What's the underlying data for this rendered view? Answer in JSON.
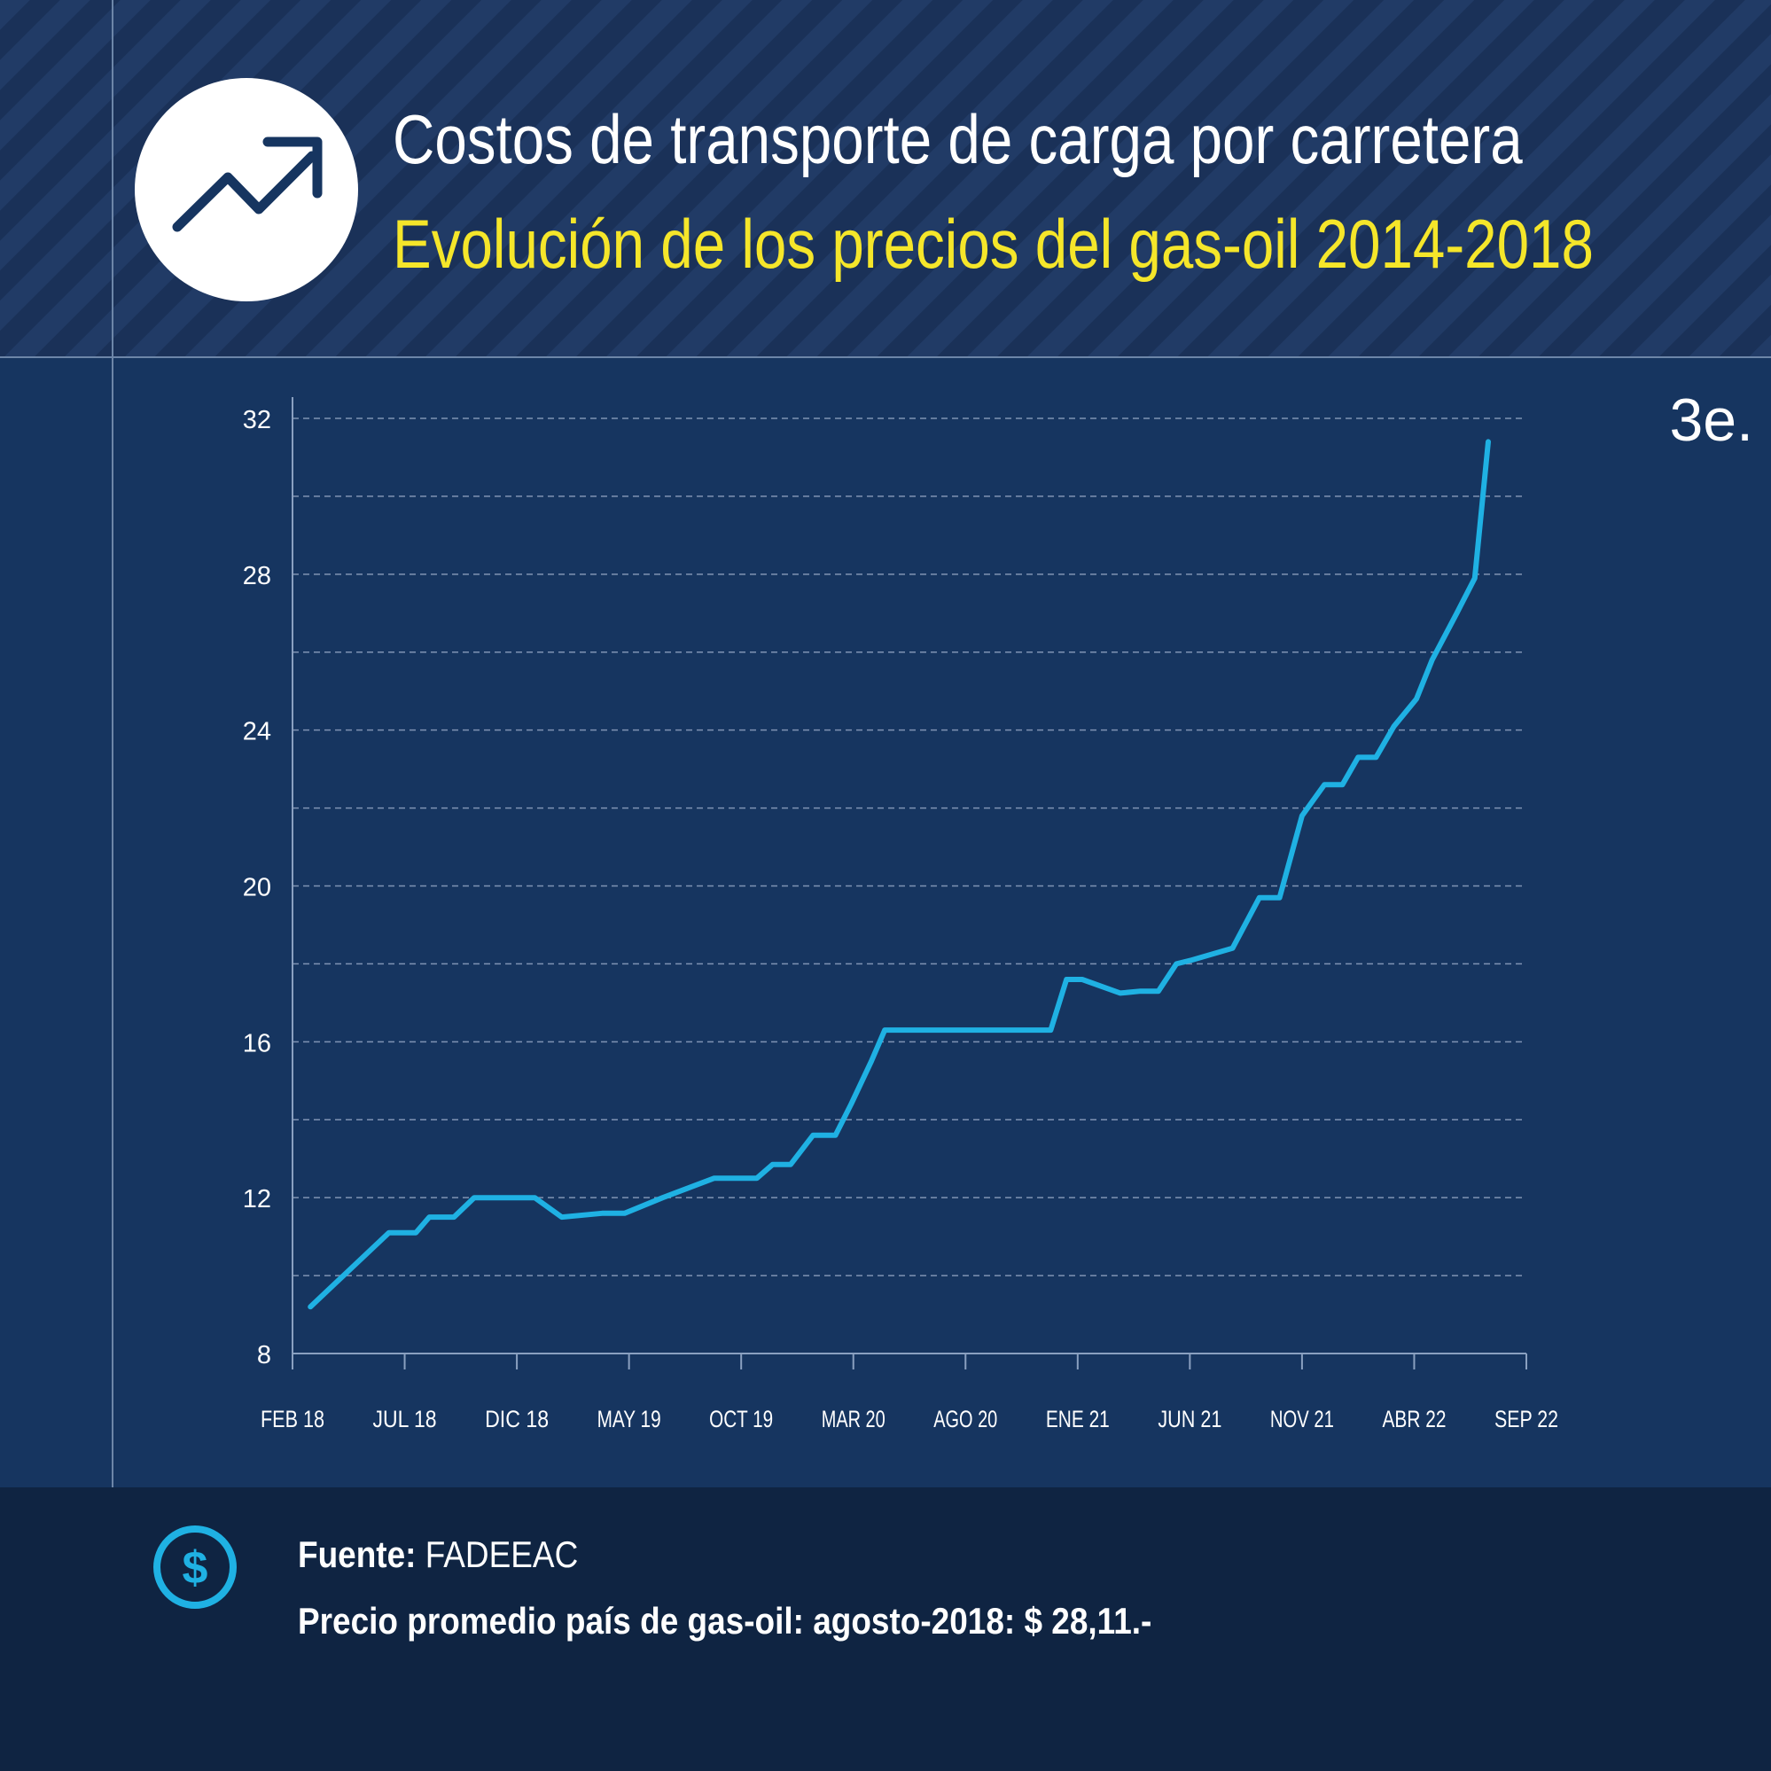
{
  "header": {
    "title": "Costos de transporte de carga por carretera",
    "subtitle": "Evolución de los precios del gas-oil 2014-2018",
    "icon": "trending-up-icon"
  },
  "tag": "3e.",
  "footer": {
    "source_label": "Fuente:",
    "source_value": "FADEEAC",
    "note": "Precio promedio país de gas-oil: agosto-2018: $ 28,11.-",
    "icon": "dollar-icon"
  },
  "colors": {
    "background": "#163560",
    "header_background": "#1a3158",
    "footer_background": "#0f2442",
    "line": "#1fb1e3",
    "subtitle": "#f5e62a",
    "text": "#ffffff"
  },
  "chart_data": {
    "type": "line",
    "title": "Evolución de los precios del gas-oil 2014-2018",
    "xlabel": "",
    "ylabel": "",
    "ylim": [
      8,
      32
    ],
    "yticks": [
      "8",
      "12",
      "16",
      "20",
      "24",
      "28",
      "32"
    ],
    "x_tick_labels": [
      "FEB 18",
      "JUL 18",
      "DIC 18",
      "MAY 19",
      "OCT 19",
      "MAR 20",
      "AGO 20",
      "ENE 21",
      "JUN 21",
      "NOV 21",
      "ABR 22",
      "SEP 22"
    ],
    "grid": true,
    "series": [
      {
        "x": [
          0.8,
          4.3,
          5.5,
          6.1,
          7.2,
          8.1,
          10.8,
          12.0,
          13.8,
          14.8,
          16.5,
          18.8,
          20.7,
          21.4,
          22.2,
          23.2,
          24.2,
          24.9,
          25.8,
          26.4,
          27.0,
          33.8,
          34.5,
          35.2,
          36.9,
          37.8,
          38.6,
          39.4,
          40.1,
          41.9,
          43.1,
          44.0,
          45.0,
          46.0,
          46.8,
          47.5,
          48.3,
          49.1,
          50.1,
          50.8,
          51.9,
          52.7,
          53.3
        ],
        "values": [
          9.2,
          11.1,
          11.1,
          11.5,
          11.5,
          12.0,
          12.0,
          11.5,
          11.6,
          11.6,
          12.0,
          12.5,
          12.5,
          12.85,
          12.85,
          13.6,
          13.6,
          14.4,
          15.5,
          16.3,
          16.3,
          16.3,
          17.6,
          17.6,
          17.25,
          17.3,
          17.3,
          18.0,
          18.1,
          18.4,
          19.7,
          19.7,
          21.8,
          22.6,
          22.6,
          23.3,
          23.3,
          24.1,
          24.8,
          25.8,
          27.0,
          27.9,
          31.4
        ]
      }
    ]
  }
}
